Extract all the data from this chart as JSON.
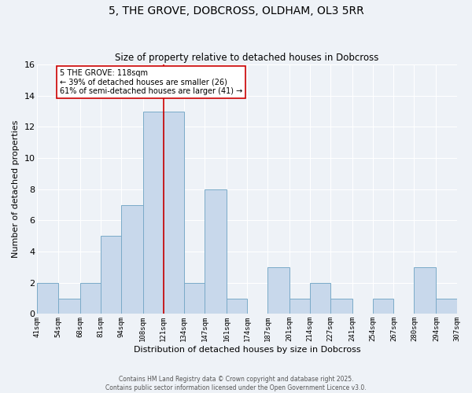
{
  "title": "5, THE GROVE, DOBCROSS, OLDHAM, OL3 5RR",
  "subtitle": "Size of property relative to detached houses in Dobcross",
  "xlabel": "Distribution of detached houses by size in Dobcross",
  "ylabel": "Number of detached properties",
  "bar_color": "#c8d8eb",
  "bar_edge_color": "#7aaac8",
  "background_color": "#eef2f7",
  "grid_color": "#ffffff",
  "bin_edges": [
    41,
    54,
    68,
    81,
    94,
    108,
    121,
    134,
    147,
    161,
    174,
    187,
    201,
    214,
    227,
    241,
    254,
    267,
    280,
    294,
    307
  ],
  "bin_labels": [
    "41sqm",
    "54sqm",
    "68sqm",
    "81sqm",
    "94sqm",
    "108sqm",
    "121sqm",
    "134sqm",
    "147sqm",
    "161sqm",
    "174sqm",
    "187sqm",
    "201sqm",
    "214sqm",
    "227sqm",
    "241sqm",
    "254sqm",
    "267sqm",
    "280sqm",
    "294sqm",
    "307sqm"
  ],
  "counts": [
    2,
    1,
    2,
    5,
    7,
    13,
    13,
    2,
    8,
    1,
    0,
    3,
    1,
    2,
    1,
    0,
    1,
    0,
    3,
    1
  ],
  "ylim": [
    0,
    16
  ],
  "yticks": [
    0,
    2,
    4,
    6,
    8,
    10,
    12,
    14,
    16
  ],
  "marker_bin_index": 5,
  "annotation_line1": "5 THE GROVE: 118sqm",
  "annotation_line2": "← 39% of detached houses are smaller (26)",
  "annotation_line3": "61% of semi-detached houses are larger (41) →",
  "marker_color": "#cc0000",
  "annotation_box_edge": "#cc0000",
  "footer_line1": "Contains HM Land Registry data © Crown copyright and database right 2025.",
  "footer_line2": "Contains public sector information licensed under the Open Government Licence v3.0."
}
